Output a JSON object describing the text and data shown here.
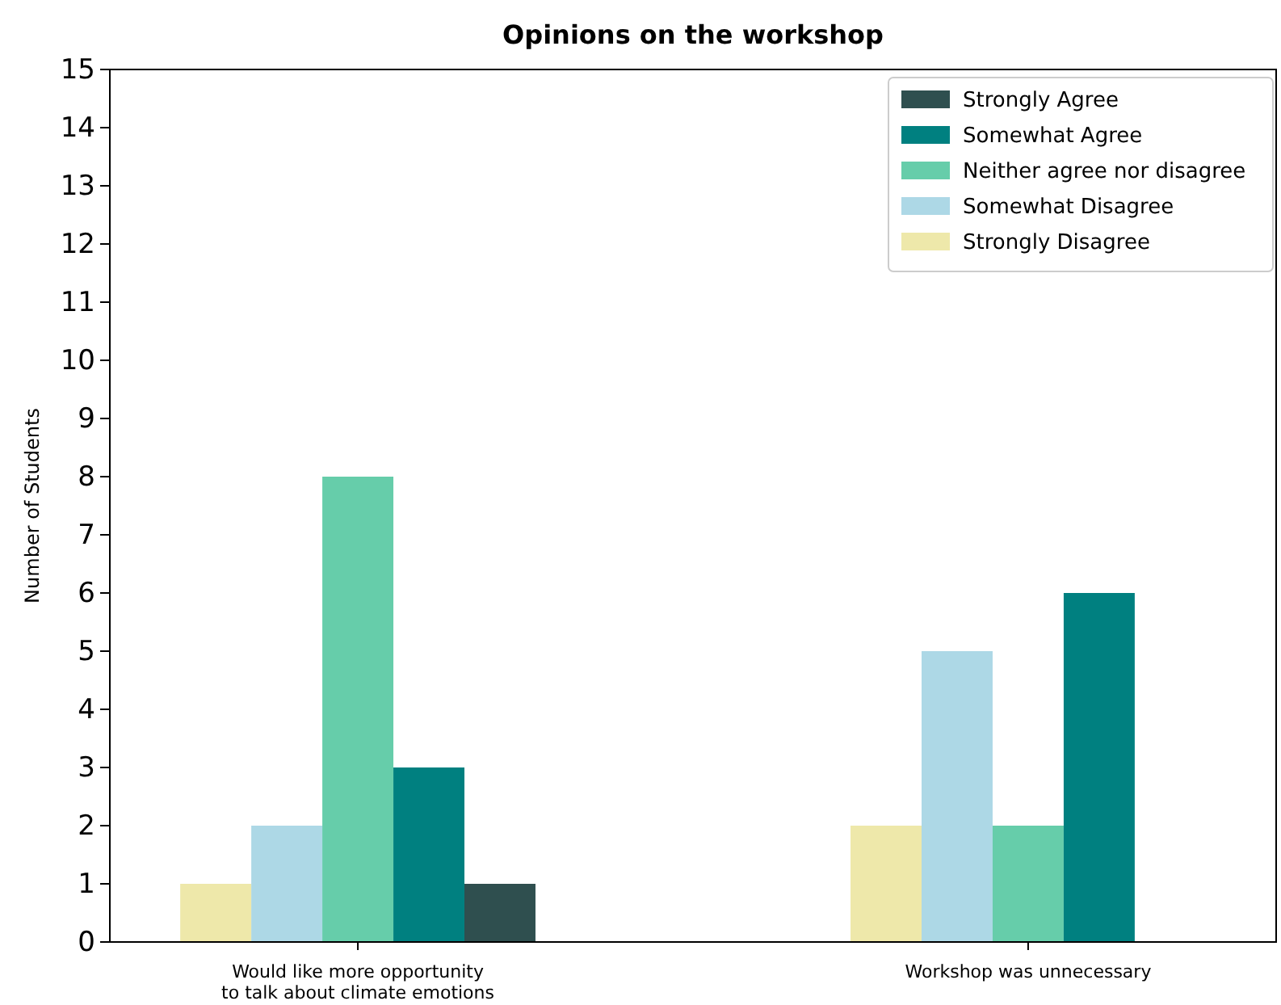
{
  "chart_data": {
    "type": "bar",
    "title": "Opinions on the workshop",
    "ylabel": "Number of Students",
    "categories": [
      "Would like more opportunity\nto talk about climate emotions",
      "Workshop was unnecessary"
    ],
    "series": [
      {
        "name": "Strongly Disagree",
        "color": "#eee8aa",
        "values": [
          1,
          2
        ]
      },
      {
        "name": "Somewhat Disagree",
        "color": "#add8e6",
        "values": [
          2,
          5
        ]
      },
      {
        "name": "Neither agree nor disagree",
        "color": "#66cdaa",
        "values": [
          8,
          2
        ]
      },
      {
        "name": "Somewhat Agree",
        "color": "#008080",
        "values": [
          3,
          6
        ]
      },
      {
        "name": "Strongly Agree",
        "color": "#2f4f4f",
        "values": [
          1,
          0
        ]
      }
    ],
    "ylim": [
      0,
      15
    ],
    "yticks": [
      0,
      1,
      2,
      3,
      4,
      5,
      6,
      7,
      8,
      9,
      10,
      11,
      12,
      13,
      14,
      15
    ],
    "grid": false,
    "legend": "top right"
  }
}
